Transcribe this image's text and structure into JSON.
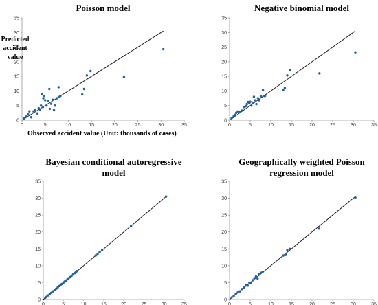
{
  "chart_data": [
    {
      "type": "scatter",
      "title": "Poisson model",
      "xlabel": "Observed accident value (Unit: thousands of cases)",
      "ylabel": [
        "Predicted",
        "accident",
        "value"
      ],
      "xlim": [
        0,
        35
      ],
      "ylim": [
        0,
        35
      ],
      "xticks": [
        0,
        5,
        10,
        15,
        20,
        25,
        30,
        35
      ],
      "yticks": [
        0,
        5,
        10,
        15,
        20,
        25,
        30,
        35
      ],
      "reference_line": [
        [
          0,
          0
        ],
        [
          30.5,
          30.5
        ]
      ],
      "points": [
        [
          0.5,
          0.6
        ],
        [
          1,
          1.3
        ],
        [
          1.3,
          2
        ],
        [
          1.6,
          3
        ],
        [
          2,
          1
        ],
        [
          2.5,
          3
        ],
        [
          2.8,
          3.5
        ],
        [
          3.3,
          2.3
        ],
        [
          3.6,
          4.1
        ],
        [
          3.9,
          3.6
        ],
        [
          4.1,
          5
        ],
        [
          4.3,
          9
        ],
        [
          4.5,
          4.5
        ],
        [
          4.6,
          7.5
        ],
        [
          4.8,
          8.3
        ],
        [
          5,
          6.8
        ],
        [
          5.3,
          5
        ],
        [
          5.6,
          6.5
        ],
        [
          5.9,
          10.7
        ],
        [
          6,
          3.9
        ],
        [
          6.3,
          5.6
        ],
        [
          6.6,
          7
        ],
        [
          6.9,
          3.5
        ],
        [
          7.1,
          5
        ],
        [
          7.5,
          7.5
        ],
        [
          7.9,
          11.3
        ],
        [
          8.1,
          8
        ],
        [
          8.3,
          8.3
        ],
        [
          13,
          8.8
        ],
        [
          13.4,
          10.7
        ],
        [
          14,
          15.3
        ],
        [
          14.8,
          16.8
        ],
        [
          22,
          14.8
        ],
        [
          30.5,
          24.3
        ]
      ]
    },
    {
      "type": "scatter",
      "title": "Negative binomial model",
      "xlabel": "",
      "ylabel": "",
      "xlim": [
        0,
        35
      ],
      "ylim": [
        0,
        35
      ],
      "xticks": [
        0,
        5,
        10,
        15,
        20,
        25,
        30,
        35
      ],
      "yticks": [
        0,
        5,
        10,
        15,
        20,
        25,
        30,
        35
      ],
      "reference_line": [
        [
          0,
          0
        ],
        [
          30.5,
          30.5
        ]
      ],
      "points": [
        [
          0.5,
          0.7
        ],
        [
          1,
          1.3
        ],
        [
          1.3,
          1.8
        ],
        [
          1.6,
          2.5
        ],
        [
          2,
          3
        ],
        [
          2.5,
          2.8
        ],
        [
          3,
          3.3
        ],
        [
          3.5,
          4.5
        ],
        [
          3.9,
          4.8
        ],
        [
          4.2,
          5.5
        ],
        [
          4.5,
          6.2
        ],
        [
          4.8,
          5.8
        ],
        [
          5,
          6.3
        ],
        [
          5.3,
          5
        ],
        [
          5.6,
          6
        ],
        [
          5.9,
          8
        ],
        [
          6.2,
          6.8
        ],
        [
          6.5,
          5.5
        ],
        [
          6.9,
          7.5
        ],
        [
          7.2,
          6.8
        ],
        [
          7.6,
          8.2
        ],
        [
          8.1,
          10.3
        ],
        [
          8.4,
          8.3
        ],
        [
          8.6,
          8.3
        ],
        [
          13,
          10.3
        ],
        [
          13.4,
          11
        ],
        [
          14,
          15.3
        ],
        [
          14.6,
          17.2
        ],
        [
          21.8,
          16
        ],
        [
          30.5,
          23.2
        ]
      ]
    },
    {
      "type": "scatter",
      "title": [
        "Bayesian conditional autoregressive",
        "model"
      ],
      "xlabel": "",
      "ylabel": "",
      "xlim": [
        0,
        35
      ],
      "ylim": [
        0,
        35
      ],
      "xticks": [
        0,
        5,
        10,
        15,
        20,
        25,
        30,
        35
      ],
      "yticks": [
        0,
        5,
        10,
        15,
        20,
        25,
        30,
        35
      ],
      "reference_line": [
        [
          0,
          0
        ],
        [
          30.5,
          30.5
        ]
      ],
      "points": [
        [
          0.5,
          0.5
        ],
        [
          0.8,
          0.8
        ],
        [
          1.2,
          1.2
        ],
        [
          1.6,
          1.6
        ],
        [
          2,
          2
        ],
        [
          2.4,
          2.4
        ],
        [
          2.8,
          2.8
        ],
        [
          3.2,
          3.2
        ],
        [
          3.6,
          3.6
        ],
        [
          4,
          4
        ],
        [
          4.3,
          4.3
        ],
        [
          4.6,
          4.6
        ],
        [
          5,
          5
        ],
        [
          5.3,
          5.3
        ],
        [
          5.6,
          5.6
        ],
        [
          6,
          6
        ],
        [
          6.3,
          6.3
        ],
        [
          6.6,
          6.6
        ],
        [
          7,
          7
        ],
        [
          7.4,
          7.4
        ],
        [
          7.8,
          7.8
        ],
        [
          8.1,
          8.1
        ],
        [
          8.4,
          8.4
        ],
        [
          13,
          13
        ],
        [
          13.5,
          13.5
        ],
        [
          14,
          14
        ],
        [
          14.6,
          14.6
        ],
        [
          21.8,
          21.8
        ],
        [
          30.5,
          30.5
        ]
      ]
    },
    {
      "type": "scatter",
      "title": [
        "Geographically weighted Poisson",
        "regression model"
      ],
      "xlabel": "",
      "ylabel": "",
      "xlim": [
        0,
        35
      ],
      "ylim": [
        0,
        35
      ],
      "xticks": [
        0,
        5,
        10,
        15,
        20,
        25,
        30,
        35
      ],
      "yticks": [
        0,
        5,
        10,
        15,
        20,
        25,
        30,
        35
      ],
      "reference_line": [
        [
          0,
          0
        ],
        [
          30.5,
          30.5
        ]
      ],
      "points": [
        [
          0.5,
          0.6
        ],
        [
          1,
          1
        ],
        [
          1.5,
          1.6
        ],
        [
          2,
          2.1
        ],
        [
          2.5,
          2.4
        ],
        [
          3,
          3.1
        ],
        [
          3.5,
          3.6
        ],
        [
          4,
          4.2
        ],
        [
          4.4,
          4.1
        ],
        [
          4.8,
          5
        ],
        [
          5.2,
          4.8
        ],
        [
          5.6,
          5.7
        ],
        [
          6,
          6.3
        ],
        [
          6.4,
          6.8
        ],
        [
          6.8,
          6.2
        ],
        [
          7.2,
          7.4
        ],
        [
          7.6,
          7.9
        ],
        [
          8,
          8.1
        ],
        [
          13,
          13
        ],
        [
          13.6,
          13.4
        ],
        [
          14,
          14.7
        ],
        [
          14.6,
          15
        ],
        [
          21.7,
          21
        ],
        [
          30.5,
          30.2
        ]
      ]
    }
  ]
}
